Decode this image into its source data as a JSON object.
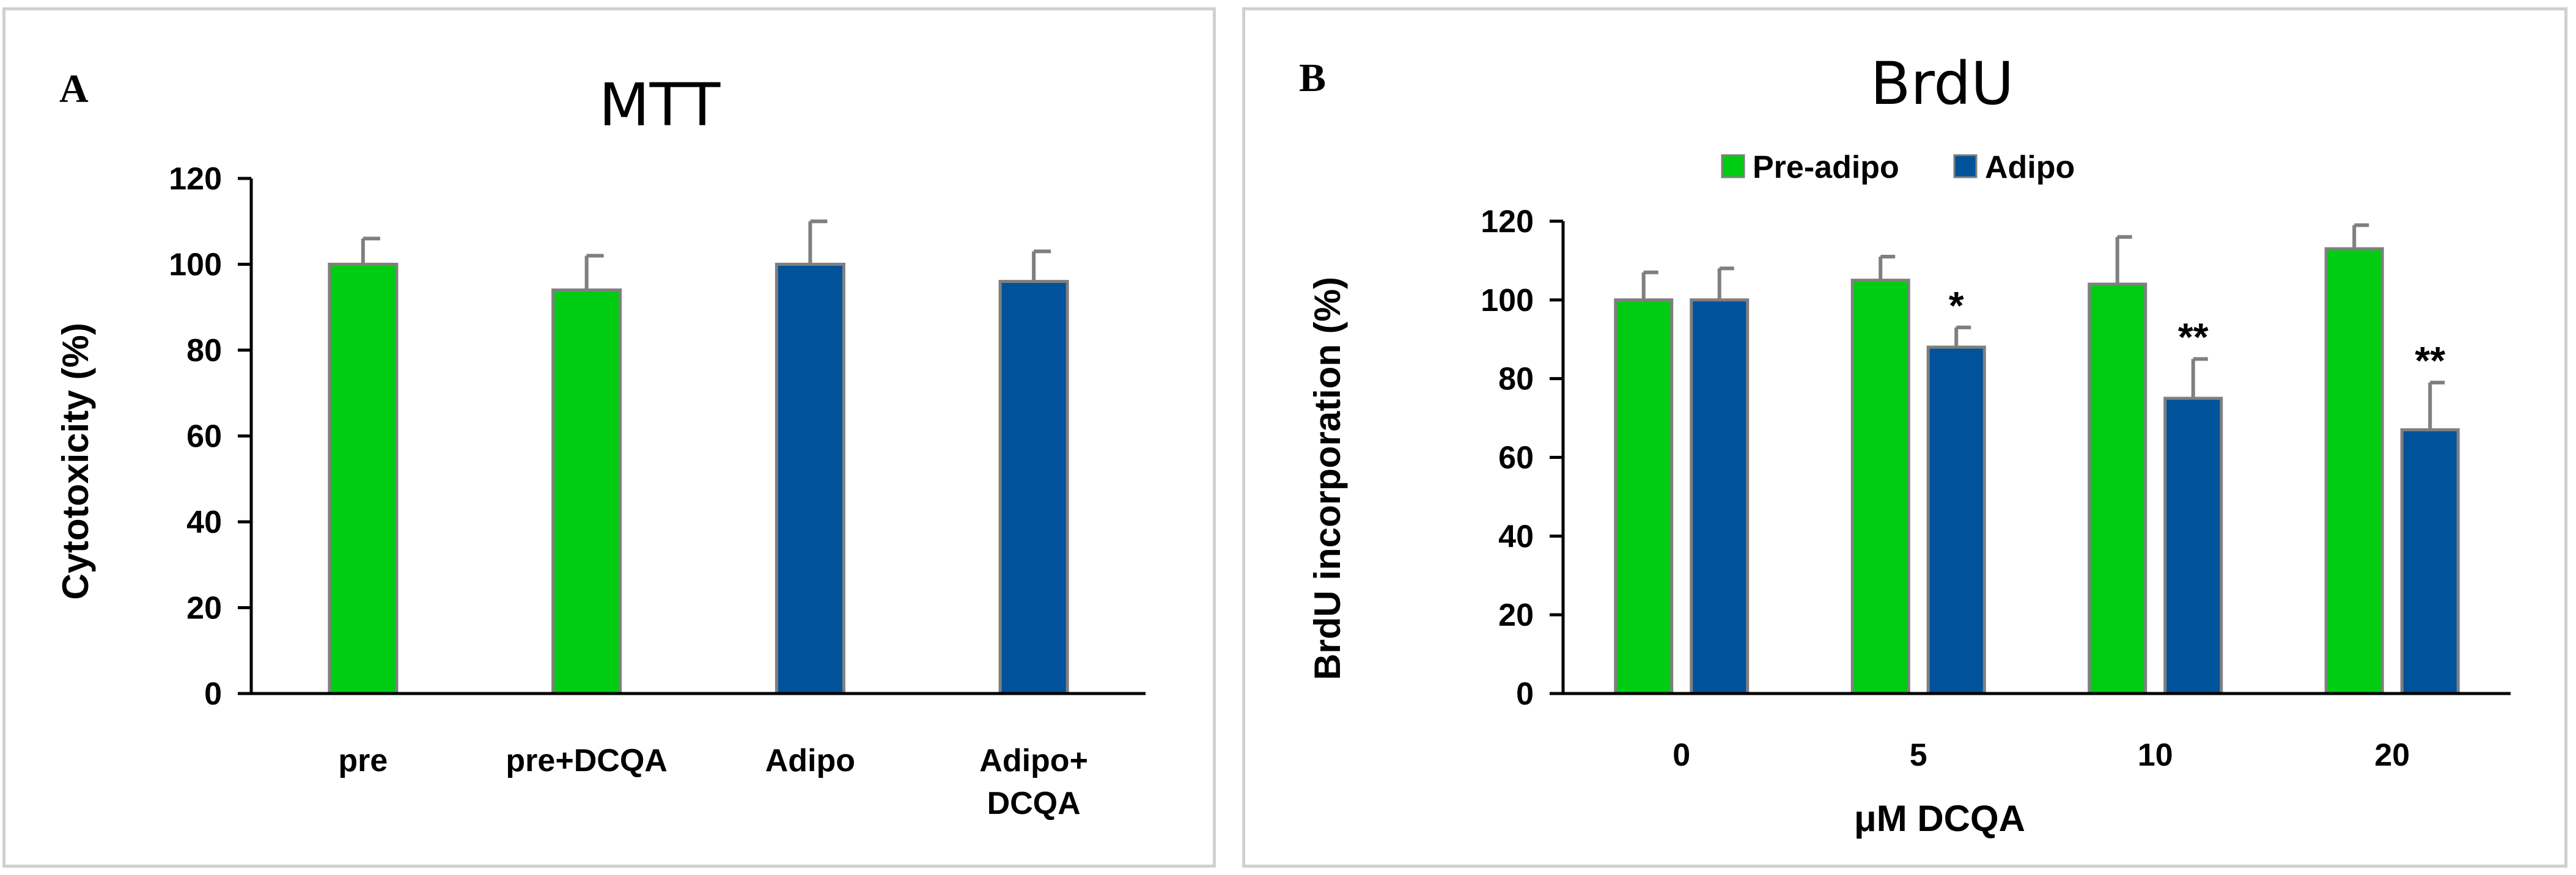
{
  "colors": {
    "green": "#00cc11",
    "blue": "#00529b",
    "bar_edge": "#7f7f7f",
    "axis": "#000000",
    "panel_border": "#d0d0d0"
  },
  "chart_data": [
    {
      "type": "bar",
      "panel_letter": "A",
      "title": "MTT",
      "xlabel": "",
      "ylabel": "Cytotoxicity (%)",
      "ylim": [
        0,
        120
      ],
      "yticks": [
        "0",
        "20",
        "40",
        "60",
        "80",
        "100",
        "120"
      ],
      "categories": [
        [
          "pre"
        ],
        [
          "pre+DCQA"
        ],
        [
          "Adipo"
        ],
        [
          "Adipo+",
          "DCQA"
        ]
      ],
      "values": [
        100,
        94,
        100,
        96
      ],
      "errors": [
        6,
        8,
        10,
        7
      ],
      "bar_colors": [
        "green",
        "green",
        "blue",
        "blue"
      ]
    },
    {
      "type": "bar",
      "panel_letter": "B",
      "title": "BrdU",
      "xlabel": "μM DCQA",
      "ylabel": "BrdU incorporation (%)",
      "ylim": [
        0,
        120
      ],
      "yticks": [
        "0",
        "20",
        "40",
        "60",
        "80",
        "100",
        "120"
      ],
      "categories": [
        "0",
        "5",
        "10",
        "20"
      ],
      "series": [
        {
          "name": "Pre-adipo",
          "color": "green",
          "values": [
            100,
            105,
            104,
            113
          ],
          "errors": [
            7,
            6,
            12,
            6
          ],
          "annotations": [
            "",
            "",
            "",
            ""
          ]
        },
        {
          "name": "Adipo",
          "color": "blue",
          "values": [
            100,
            88,
            75,
            67
          ],
          "errors": [
            8,
            5,
            10,
            12
          ],
          "annotations": [
            "",
            "*",
            "**",
            "**"
          ]
        }
      ],
      "legend_position": "top-center"
    }
  ]
}
